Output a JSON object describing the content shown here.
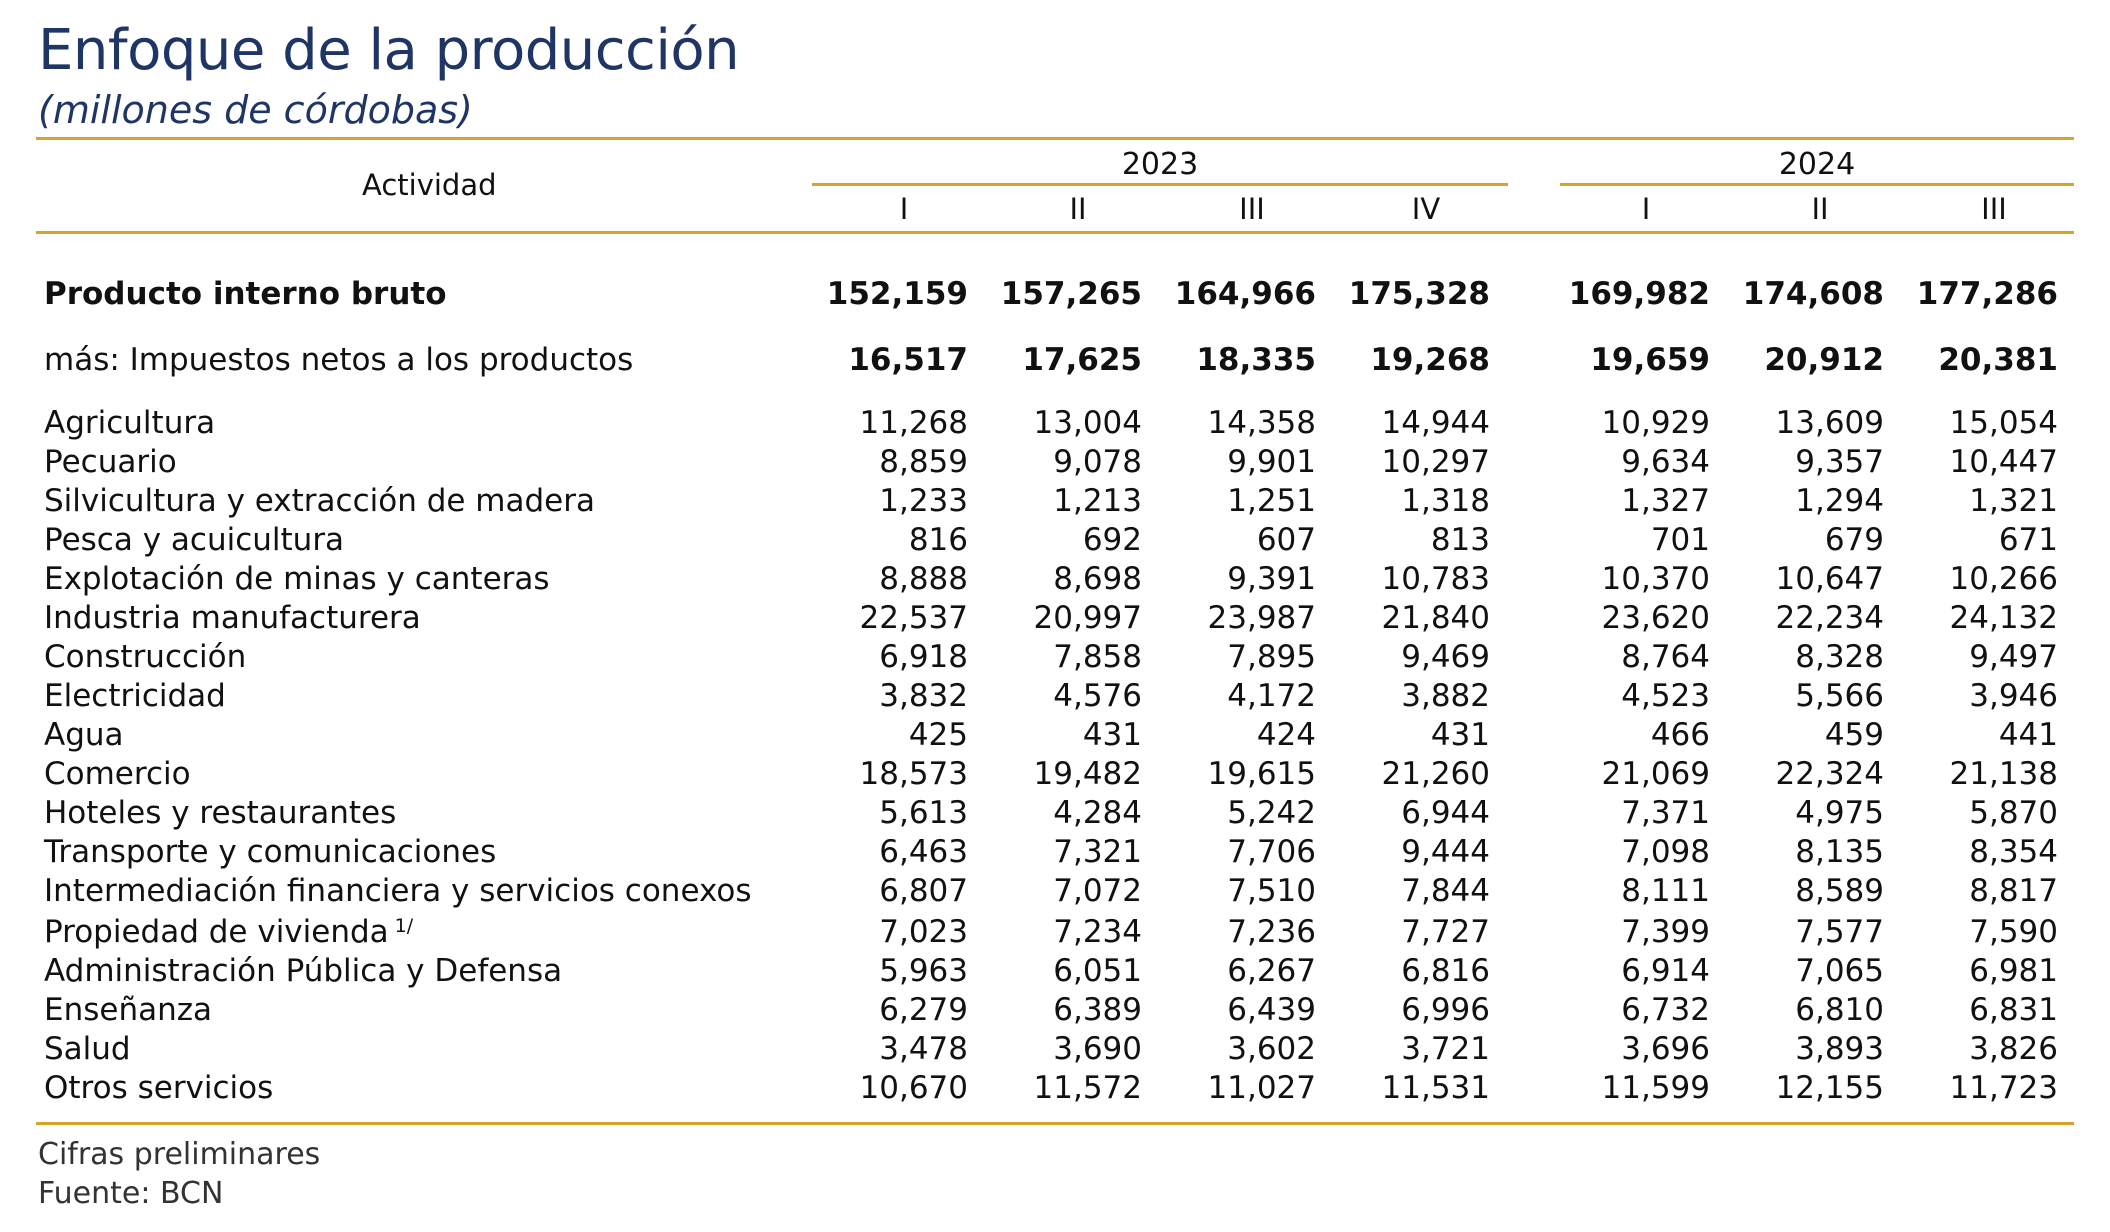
{
  "title": "Enfoque de la producción",
  "subtitle": "(millones de córdobas)",
  "colors": {
    "title": "#1f3566",
    "rule": "#d8a32b",
    "text": "#111111"
  },
  "header": {
    "activity_label": "Actividad",
    "years": [
      "2023",
      "2024"
    ],
    "quarters_2023": [
      "I",
      "II",
      "III",
      "IV"
    ],
    "quarters_2024": [
      "I",
      "II",
      "III"
    ]
  },
  "rows": [
    {
      "label": "Producto interno bruto",
      "sup": "",
      "values": [
        "152,159",
        "157,265",
        "164,966",
        "175,328",
        "169,982",
        "174,608",
        "177,286"
      ]
    },
    {
      "label": "más: Impuestos netos a los productos",
      "sup": "",
      "values": [
        "16,517",
        "17,625",
        "18,335",
        "19,268",
        "19,659",
        "20,912",
        "20,381"
      ]
    },
    {
      "label": "Agricultura",
      "sup": "",
      "values": [
        "11,268",
        "13,004",
        "14,358",
        "14,944",
        "10,929",
        "13,609",
        "15,054"
      ]
    },
    {
      "label": "Pecuario",
      "sup": "",
      "values": [
        "8,859",
        "9,078",
        "9,901",
        "10,297",
        "9,634",
        "9,357",
        "10,447"
      ]
    },
    {
      "label": "Silvicultura y extracción de madera",
      "sup": "",
      "values": [
        "1,233",
        "1,213",
        "1,251",
        "1,318",
        "1,327",
        "1,294",
        "1,321"
      ]
    },
    {
      "label": "Pesca y acuicultura",
      "sup": "",
      "values": [
        "816",
        "692",
        "607",
        "813",
        "701",
        "679",
        "671"
      ]
    },
    {
      "label": "Explotación de minas y canteras",
      "sup": "",
      "values": [
        "8,888",
        "8,698",
        "9,391",
        "10,783",
        "10,370",
        "10,647",
        "10,266"
      ]
    },
    {
      "label": "Industria manufacturera",
      "sup": "",
      "values": [
        "22,537",
        "20,997",
        "23,987",
        "21,840",
        "23,620",
        "22,234",
        "24,132"
      ]
    },
    {
      "label": "Construcción",
      "sup": "",
      "values": [
        "6,918",
        "7,858",
        "7,895",
        "9,469",
        "8,764",
        "8,328",
        "9,497"
      ]
    },
    {
      "label": "Electricidad",
      "sup": "",
      "values": [
        "3,832",
        "4,576",
        "4,172",
        "3,882",
        "4,523",
        "5,566",
        "3,946"
      ]
    },
    {
      "label": "Agua",
      "sup": "",
      "values": [
        "425",
        "431",
        "424",
        "431",
        "466",
        "459",
        "441"
      ]
    },
    {
      "label": "Comercio",
      "sup": "",
      "values": [
        "18,573",
        "19,482",
        "19,615",
        "21,260",
        "21,069",
        "22,324",
        "21,138"
      ]
    },
    {
      "label": "Hoteles y restaurantes",
      "sup": "",
      "values": [
        "5,613",
        "4,284",
        "5,242",
        "6,944",
        "7,371",
        "4,975",
        "5,870"
      ]
    },
    {
      "label": "Transporte y comunicaciones",
      "sup": "",
      "values": [
        "6,463",
        "7,321",
        "7,706",
        "9,444",
        "7,098",
        "8,135",
        "8,354"
      ]
    },
    {
      "label": "Intermediación financiera y servicios conexos",
      "sup": "",
      "values": [
        "6,807",
        "7,072",
        "7,510",
        "7,844",
        "8,111",
        "8,589",
        "8,817"
      ]
    },
    {
      "label": "Propiedad de vivienda",
      "sup": "1/",
      "values": [
        "7,023",
        "7,234",
        "7,236",
        "7,727",
        "7,399",
        "7,577",
        "7,590"
      ]
    },
    {
      "label": "Administración Pública y Defensa",
      "sup": "",
      "values": [
        "5,963",
        "6,051",
        "6,267",
        "6,816",
        "6,914",
        "7,065",
        "6,981"
      ]
    },
    {
      "label": "Enseñanza",
      "sup": "",
      "values": [
        "6,279",
        "6,389",
        "6,439",
        "6,996",
        "6,732",
        "6,810",
        "6,831"
      ]
    },
    {
      "label": "Salud",
      "sup": "",
      "values": [
        "3,478",
        "3,690",
        "3,602",
        "3,721",
        "3,696",
        "3,893",
        "3,826"
      ]
    },
    {
      "label": "Otros servicios",
      "sup": "",
      "values": [
        "10,670",
        "11,572",
        "11,027",
        "11,531",
        "11,599",
        "12,155",
        "11,723"
      ]
    }
  ],
  "footnotes": [
    "Cifras preliminares",
    "Fuente: BCN"
  ]
}
